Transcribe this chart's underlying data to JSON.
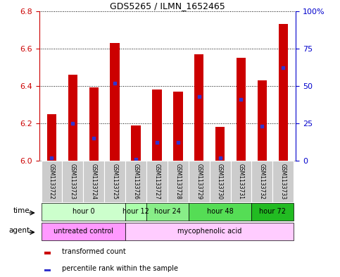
{
  "title": "GDS5265 / ILMN_1652465",
  "samples": [
    "GSM1133722",
    "GSM1133723",
    "GSM1133724",
    "GSM1133725",
    "GSM1133726",
    "GSM1133727",
    "GSM1133728",
    "GSM1133729",
    "GSM1133730",
    "GSM1133731",
    "GSM1133732",
    "GSM1133733"
  ],
  "transformed_counts": [
    6.25,
    6.46,
    6.39,
    6.63,
    6.19,
    6.38,
    6.37,
    6.57,
    6.18,
    6.55,
    6.43,
    6.73
  ],
  "percentile_ranks": [
    2,
    25,
    15,
    52,
    1,
    12,
    12,
    43,
    2,
    41,
    23,
    62
  ],
  "ylim_left": [
    6.0,
    6.8
  ],
  "ylim_right": [
    0,
    100
  ],
  "yticks_left": [
    6.0,
    6.2,
    6.4,
    6.6,
    6.8
  ],
  "yticks_right": [
    0,
    25,
    50,
    75,
    100
  ],
  "bar_color": "#cc0000",
  "blue_color": "#3333cc",
  "bar_bottom": 6.0,
  "time_groups": [
    {
      "label": "hour 0",
      "start": 0,
      "end": 3,
      "color": "#ccffcc"
    },
    {
      "label": "hour 12",
      "start": 4,
      "end": 4,
      "color": "#aaffaa"
    },
    {
      "label": "hour 24",
      "start": 5,
      "end": 6,
      "color": "#88ee88"
    },
    {
      "label": "hour 48",
      "start": 7,
      "end": 9,
      "color": "#55dd55"
    },
    {
      "label": "hour 72",
      "start": 10,
      "end": 11,
      "color": "#22bb22"
    }
  ],
  "agent_groups": [
    {
      "label": "untreated control",
      "start": 0,
      "end": 3,
      "color": "#ff99ff"
    },
    {
      "label": "mycophenolic acid",
      "start": 4,
      "end": 11,
      "color": "#ffccff"
    }
  ],
  "legend_red": "transformed count",
  "legend_blue": "percentile rank within the sample",
  "background_color": "#ffffff",
  "left_axis_color": "#cc0000",
  "right_axis_color": "#0000cc",
  "sample_bg_color": "#cccccc"
}
